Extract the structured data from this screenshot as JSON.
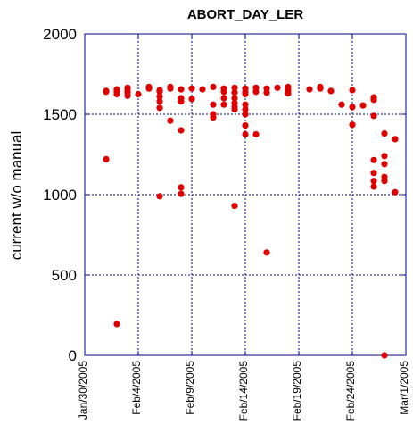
{
  "chart_data": {
    "type": "scatter",
    "title": "ABORT_DAY_LER",
    "xlabel": "",
    "ylabel": "current w/o manual",
    "xlim": [
      "2005-01-30",
      "2005-03-01"
    ],
    "ylim": [
      0,
      2000
    ],
    "x_tick_labels": [
      "Jan/30/2005",
      "Feb/4/2005",
      "Feb/9/2005",
      "Feb/14/2005",
      "Feb/19/2005",
      "Feb/24/2005",
      "Mar/1/2005"
    ],
    "y_tick_labels": [
      "0",
      "500",
      "1000",
      "1500",
      "2000"
    ],
    "y_ticks": [
      0,
      500,
      1000,
      1500,
      2000
    ],
    "grid": true,
    "marker_color": "#dd0000",
    "axis_color": "#00008b",
    "points": [
      {
        "x": "2005-02-01",
        "y": 1640
      },
      {
        "x": "2005-02-01",
        "y": 1645
      },
      {
        "x": "2005-02-01",
        "y": 1220
      },
      {
        "x": "2005-02-02",
        "y": 1655
      },
      {
        "x": "2005-02-02",
        "y": 1640
      },
      {
        "x": "2005-02-02",
        "y": 1625
      },
      {
        "x": "2005-02-02",
        "y": 195
      },
      {
        "x": "2005-02-03",
        "y": 1665
      },
      {
        "x": "2005-02-03",
        "y": 1650
      },
      {
        "x": "2005-02-03",
        "y": 1635
      },
      {
        "x": "2005-02-03",
        "y": 1615
      },
      {
        "x": "2005-02-04",
        "y": 1625
      },
      {
        "x": "2005-02-05",
        "y": 1670
      },
      {
        "x": "2005-02-05",
        "y": 1660
      },
      {
        "x": "2005-02-06",
        "y": 1650
      },
      {
        "x": "2005-02-06",
        "y": 1640
      },
      {
        "x": "2005-02-06",
        "y": 1610
      },
      {
        "x": "2005-02-06",
        "y": 1580
      },
      {
        "x": "2005-02-06",
        "y": 1540
      },
      {
        "x": "2005-02-06",
        "y": 990
      },
      {
        "x": "2005-02-07",
        "y": 1670
      },
      {
        "x": "2005-02-07",
        "y": 1660
      },
      {
        "x": "2005-02-07",
        "y": 1460
      },
      {
        "x": "2005-02-08",
        "y": 1655
      },
      {
        "x": "2005-02-08",
        "y": 1600
      },
      {
        "x": "2005-02-08",
        "y": 1580
      },
      {
        "x": "2005-02-08",
        "y": 1400
      },
      {
        "x": "2005-02-08",
        "y": 1045
      },
      {
        "x": "2005-02-08",
        "y": 1005
      },
      {
        "x": "2005-02-09",
        "y": 1660
      },
      {
        "x": "2005-02-09",
        "y": 1595
      },
      {
        "x": "2005-02-10",
        "y": 1655
      },
      {
        "x": "2005-02-11",
        "y": 1670
      },
      {
        "x": "2005-02-11",
        "y": 1560
      },
      {
        "x": "2005-02-11",
        "y": 1500
      },
      {
        "x": "2005-02-11",
        "y": 1480
      },
      {
        "x": "2005-02-12",
        "y": 1660
      },
      {
        "x": "2005-02-12",
        "y": 1640
      },
      {
        "x": "2005-02-12",
        "y": 1600
      },
      {
        "x": "2005-02-12",
        "y": 1560
      },
      {
        "x": "2005-02-13",
        "y": 1665
      },
      {
        "x": "2005-02-13",
        "y": 1635
      },
      {
        "x": "2005-02-13",
        "y": 1600
      },
      {
        "x": "2005-02-13",
        "y": 1570
      },
      {
        "x": "2005-02-13",
        "y": 1545
      },
      {
        "x": "2005-02-13",
        "y": 1530
      },
      {
        "x": "2005-02-13",
        "y": 930
      },
      {
        "x": "2005-02-14",
        "y": 1660
      },
      {
        "x": "2005-02-14",
        "y": 1640
      },
      {
        "x": "2005-02-14",
        "y": 1625
      },
      {
        "x": "2005-02-14",
        "y": 1560
      },
      {
        "x": "2005-02-14",
        "y": 1530
      },
      {
        "x": "2005-02-14",
        "y": 1500
      },
      {
        "x": "2005-02-14",
        "y": 1430
      },
      {
        "x": "2005-02-14",
        "y": 1375
      },
      {
        "x": "2005-02-15",
        "y": 1665
      },
      {
        "x": "2005-02-15",
        "y": 1640
      },
      {
        "x": "2005-02-15",
        "y": 1375
      },
      {
        "x": "2005-02-16",
        "y": 1660
      },
      {
        "x": "2005-02-16",
        "y": 1635
      },
      {
        "x": "2005-02-16",
        "y": 640
      },
      {
        "x": "2005-02-17",
        "y": 1665
      },
      {
        "x": "2005-02-18",
        "y": 1670
      },
      {
        "x": "2005-02-18",
        "y": 1650
      },
      {
        "x": "2005-02-18",
        "y": 1630
      },
      {
        "x": "2005-02-20",
        "y": 1655
      },
      {
        "x": "2005-02-21",
        "y": 1670
      },
      {
        "x": "2005-02-21",
        "y": 1660
      },
      {
        "x": "2005-02-22",
        "y": 1645
      },
      {
        "x": "2005-02-23",
        "y": 1560
      },
      {
        "x": "2005-02-24",
        "y": 1650
      },
      {
        "x": "2005-02-24",
        "y": 1545
      },
      {
        "x": "2005-02-24",
        "y": 1435
      },
      {
        "x": "2005-02-25",
        "y": 1555
      },
      {
        "x": "2005-02-26",
        "y": 1605
      },
      {
        "x": "2005-02-26",
        "y": 1590
      },
      {
        "x": "2005-02-26",
        "y": 1490
      },
      {
        "x": "2005-02-26",
        "y": 1215
      },
      {
        "x": "2005-02-26",
        "y": 1135
      },
      {
        "x": "2005-02-26",
        "y": 1085
      },
      {
        "x": "2005-02-26",
        "y": 1050
      },
      {
        "x": "2005-02-27",
        "y": 1380
      },
      {
        "x": "2005-02-27",
        "y": 1240
      },
      {
        "x": "2005-02-27",
        "y": 1190
      },
      {
        "x": "2005-02-27",
        "y": 1110
      },
      {
        "x": "2005-02-27",
        "y": 1085
      },
      {
        "x": "2005-02-27",
        "y": 0
      },
      {
        "x": "2005-02-28",
        "y": 1345
      },
      {
        "x": "2005-02-28",
        "y": 1015
      }
    ]
  }
}
